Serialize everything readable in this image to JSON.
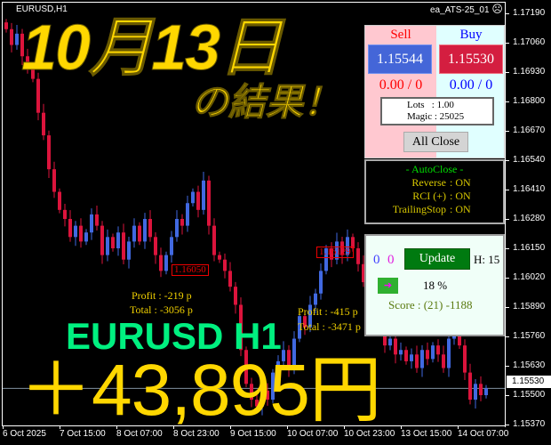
{
  "header": {
    "symbol": "EURUSD,H1",
    "ea_name": "ea_ATS-25_01",
    "ea_status_icon": "sad-face-icon"
  },
  "colors": {
    "bull": "#4169e1",
    "bear": "#dc143c",
    "headline": "#ffd700",
    "pair_label": "#00f080"
  },
  "overlay": {
    "date_title": "10月13日",
    "result_title": "の結果！",
    "pair_tf": "EURUSD H1",
    "profit_amount": "＋43,895円"
  },
  "price_axis": {
    "labels": [
      "1.17190",
      "1.17060",
      "1.16930",
      "1.16800",
      "1.16670",
      "1.16540",
      "1.16410",
      "1.16280",
      "1.16150",
      "1.16020",
      "1.15890",
      "1.15760",
      "1.15630",
      "1.15500",
      "1.15370"
    ],
    "current_price": "1.15530"
  },
  "time_axis": {
    "labels": [
      "6 Oct 2025",
      "7 Oct 15:00",
      "8 Oct 07:00",
      "8 Oct 23:00",
      "9 Oct 15:00",
      "10 Oct 07:00",
      "10 Oct 23:00",
      "13 Oct 15:00",
      "14 Oct 07:00"
    ]
  },
  "chart_data": {
    "type": "candlestick",
    "symbol": "EURUSD",
    "timeframe": "H1",
    "ylim": [
      1.1537,
      1.1719
    ],
    "closes": [
      1.1712,
      1.1705,
      1.171,
      1.17,
      1.1695,
      1.169,
      1.1675,
      1.1665,
      1.165,
      1.164,
      1.1632,
      1.1628,
      1.162,
      1.1625,
      1.1618,
      1.1622,
      1.163,
      1.1625,
      1.1612,
      1.162,
      1.1615,
      1.1622,
      1.161,
      1.1618,
      1.1625,
      1.1618,
      1.1628,
      1.162,
      1.1612,
      1.1605,
      1.1612,
      1.162,
      1.1628,
      1.1625,
      1.1635,
      1.164,
      1.1632,
      1.1645,
      1.1625,
      1.1612,
      1.161,
      1.1605,
      1.1598,
      1.159,
      1.157,
      1.1555,
      1.1548,
      1.1545,
      1.1552,
      1.1548,
      1.156,
      1.1565,
      1.157,
      1.1562,
      1.1575,
      1.1585,
      1.158,
      1.159,
      1.1595,
      1.1605,
      1.1615,
      1.161,
      1.1618,
      1.1612,
      1.162,
      1.1615,
      1.1608,
      1.16,
      1.159,
      1.158,
      1.1578,
      1.1572,
      1.1575,
      1.1568,
      1.157,
      1.1565,
      1.1568,
      1.1562,
      1.157,
      1.1566,
      1.1572,
      1.1568,
      1.1562,
      1.1575,
      1.158,
      1.1572,
      1.156,
      1.1548,
      1.1555,
      1.155,
      1.1553
    ]
  },
  "annotations": {
    "price_tag_1": "1.16050",
    "price_tag_2": "1.16129",
    "profit_1": "Profit : -219 p",
    "total_1": "Total : -3056 p",
    "profit_2": "Profit : -415 p",
    "total_2": "Total : -3471 p"
  },
  "trade_panel": {
    "sell_label": "Sell",
    "buy_label": "Buy",
    "sell_price": "1.15544",
    "buy_price": "1.15530",
    "sell_pnl": "0.00 / 0",
    "buy_pnl": "0.00 / 0",
    "lots": "Lots   : 1.00",
    "magic": "Magic : 25025",
    "all_close": "All Close"
  },
  "autoclose_panel": {
    "title": "- AutoClose -",
    "rows": [
      {
        "label": "Reverse",
        "value": ": ON"
      },
      {
        "label": "RCI  (+)",
        "value": ": ON"
      },
      {
        "label": "TrailingStop",
        "value": ": ON"
      }
    ]
  },
  "status_panel": {
    "count_blue": "0",
    "count_magenta": "0",
    "update": "Update",
    "hours": "H: 15",
    "percent": "18 %",
    "score": "Score : (21) -1188"
  }
}
